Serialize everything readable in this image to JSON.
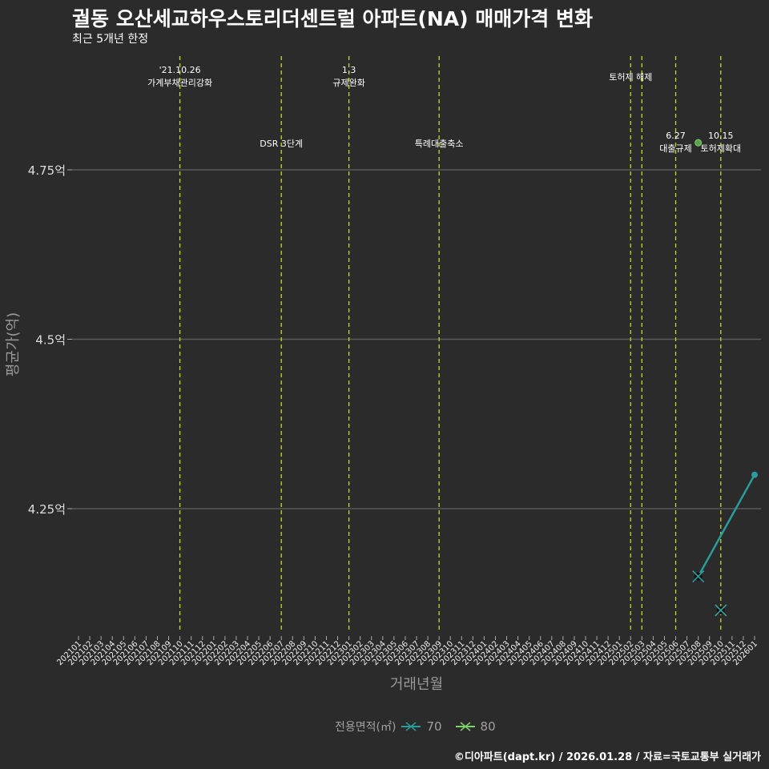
{
  "title": "궐동 오산세교하우스토리더센트럴 아파트(NA) 매매가격 변화",
  "subtitle": "최근 5개년 한정",
  "caption": "©디아파트(dapt.kr) / 2026.01.28 / 자료=국토교통부 실거래가",
  "colors": {
    "bg": "#2b2b2b",
    "grid": "#5a5a5a",
    "event": "#c8d62a",
    "s70": "#2a9d9b",
    "s80": "#7fd36a"
  },
  "chart_data": {
    "type": "line",
    "title": "궐동 오산세교하우스토리더센트럴 아파트(NA) 매매가격 변화",
    "xlabel": "거래년월",
    "ylabel": "평균가(억)",
    "x_start": "2021-01",
    "x_end": "2026-01",
    "x_ticks": [
      "202101",
      "202102",
      "202103",
      "202104",
      "202105",
      "202106",
      "202107",
      "202108",
      "202109",
      "202110",
      "202111",
      "202112",
      "202201",
      "202202",
      "202203",
      "202204",
      "202205",
      "202206",
      "202207",
      "202208",
      "202209",
      "202210",
      "202211",
      "202212",
      "202301",
      "202302",
      "202303",
      "202304",
      "202305",
      "202306",
      "202307",
      "202308",
      "202309",
      "202310",
      "202311",
      "202312",
      "202401",
      "202402",
      "202403",
      "202404",
      "202405",
      "202406",
      "202407",
      "202408",
      "202409",
      "202410",
      "202411",
      "202412",
      "202501",
      "202502",
      "202503",
      "202504",
      "202505",
      "202506",
      "202507",
      "202508",
      "202509",
      "202510",
      "202511",
      "202512",
      "202601"
    ],
    "y_ticks": [
      {
        "v": 4.25,
        "label": "4.25억"
      },
      {
        "v": 4.5,
        "label": "4.5억"
      },
      {
        "v": 4.75,
        "label": "4.75억"
      }
    ],
    "ylim": [
      4.06,
      4.98
    ],
    "legend_title": "전용면적(㎡)",
    "legend_position": "bottom",
    "series": [
      {
        "name": "70",
        "points": [
          {
            "x": "202508",
            "y": 4.15
          },
          {
            "x": "202601",
            "y": 4.3
          }
        ]
      },
      {
        "name": "80",
        "points": [
          {
            "x": "202508",
            "y": 4.79
          },
          {
            "x": "202510",
            "y": 4.1
          }
        ]
      }
    ],
    "events": [
      {
        "x": "202110",
        "lines": [
          "'21.10.26",
          "가계부채관리강화"
        ],
        "row": 0
      },
      {
        "x": "202207",
        "lines": [
          "DSR 3단계"
        ],
        "row": 1
      },
      {
        "x": "202301",
        "lines": [
          "1.3",
          "규제완화"
        ],
        "row": 0
      },
      {
        "x": "202309",
        "lines": [
          "특례대출축소"
        ],
        "row": 1
      },
      {
        "x": "202502",
        "lines": [
          "토허제 해제"
        ],
        "row": 2
      },
      {
        "x": "202503",
        "lines": [],
        "row": 2
      },
      {
        "x": "202506",
        "lines": [
          "6.27",
          "대출규제"
        ],
        "row": 3
      },
      {
        "x": "202510",
        "lines": [
          "10.15",
          "토허제확대"
        ],
        "row": 3
      }
    ]
  }
}
